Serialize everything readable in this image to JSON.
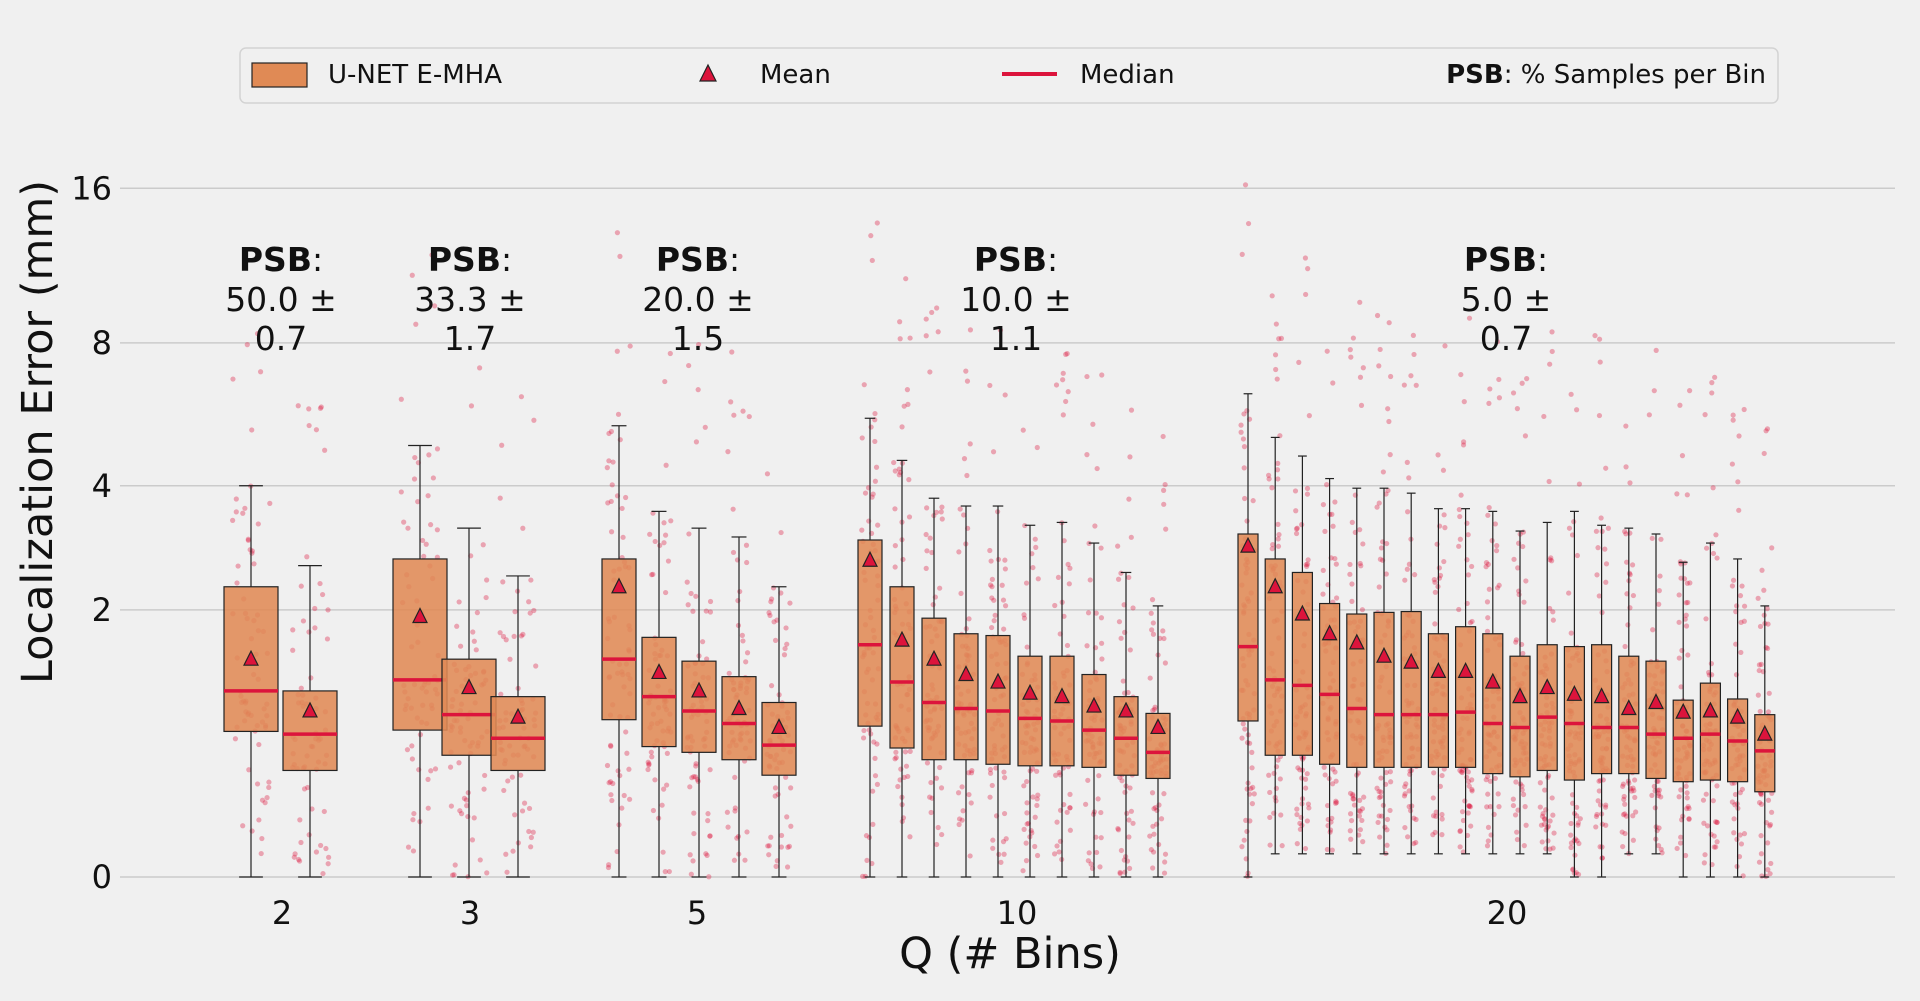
{
  "chart_data": {
    "type": "box",
    "xlabel": "Q (# Bins)",
    "ylabel": "Localization Error (mm)",
    "y_scale": "log2(1+y)",
    "ylim": [
      0,
      16
    ],
    "y_ticks": [
      0,
      2,
      4,
      8,
      16
    ],
    "grid": "horizontal",
    "legend": {
      "placement": "top",
      "items": [
        {
          "label": "U-NET E-MHA"
        },
        {
          "label": "Mean"
        },
        {
          "label": "Median"
        },
        {
          "label_bold": "PSB",
          "label_rest": ": % Samples per Bin"
        }
      ]
    },
    "colors": {
      "box": "#e08a55",
      "median": "#dc143c",
      "mean": "#dc143c",
      "points": "#dc143c",
      "grid": "#cbcbcb",
      "background": "#f0f0f0"
    },
    "groups": [
      {
        "q": "2",
        "psb": {
          "bold": "PSB",
          "colon": ":",
          "line2": "50.0 ±",
          "line3": "0.7"
        },
        "boxes": [
          {
            "q1": 0.82,
            "median": 1.15,
            "q3": 2.3,
            "mean": 1.45,
            "lower": 0,
            "upper": 4.0
          },
          {
            "q1": 0.55,
            "median": 0.8,
            "q3": 1.15,
            "mean": 0.98,
            "lower": 0,
            "upper": 2.6
          }
        ]
      },
      {
        "q": "3",
        "psb": {
          "bold": "PSB",
          "colon": ":",
          "line2": "33.3 ±",
          "line3": "1.7"
        },
        "boxes": [
          {
            "q1": 0.83,
            "median": 1.25,
            "q3": 2.7,
            "mean": 1.92,
            "lower": 0,
            "upper": 4.9
          },
          {
            "q1": 0.65,
            "median": 0.95,
            "q3": 1.45,
            "mean": 1.18,
            "lower": 0,
            "upper": 3.2
          },
          {
            "q1": 0.55,
            "median": 0.77,
            "q3": 1.1,
            "mean": 0.93,
            "lower": 0,
            "upper": 2.45
          }
        ]
      },
      {
        "q": "5",
        "psb": {
          "bold": "PSB",
          "colon": ":",
          "line2": "20.0 ±",
          "line3": "1.5"
        },
        "boxes": [
          {
            "q1": 0.91,
            "median": 1.45,
            "q3": 2.7,
            "mean": 2.3,
            "lower": 0,
            "upper": 5.4
          },
          {
            "q1": 0.71,
            "median": 1.1,
            "q3": 1.68,
            "mean": 1.32,
            "lower": 0,
            "upper": 3.5
          },
          {
            "q1": 0.67,
            "median": 0.98,
            "q3": 1.43,
            "mean": 1.15,
            "lower": 0,
            "upper": 3.2
          },
          {
            "q1": 0.62,
            "median": 0.88,
            "q3": 1.28,
            "mean": 1.0,
            "lower": 0,
            "upper": 3.05
          },
          {
            "q1": 0.52,
            "median": 0.72,
            "q3": 1.05,
            "mean": 0.85,
            "lower": 0,
            "upper": 2.3
          }
        ]
      },
      {
        "q": "10",
        "psb": {
          "bold": "PSB",
          "colon": ":",
          "line2": "10.0 ±",
          "line3": "1.1"
        },
        "boxes": [
          {
            "q1": 0.86,
            "median": 1.6,
            "q3": 3.0,
            "mean": 2.68,
            "lower": 0,
            "upper": 5.6
          },
          {
            "q1": 0.7,
            "median": 1.23,
            "q3": 2.3,
            "mean": 1.65,
            "lower": 0,
            "upper": 4.55
          },
          {
            "q1": 0.62,
            "median": 1.05,
            "q3": 1.9,
            "mean": 1.45,
            "lower": 0,
            "upper": 3.75
          },
          {
            "q1": 0.62,
            "median": 1.0,
            "q3": 1.72,
            "mean": 1.3,
            "lower": 0,
            "upper": 3.6
          },
          {
            "q1": 0.59,
            "median": 0.98,
            "q3": 1.7,
            "mean": 1.23,
            "lower": 0,
            "upper": 3.6
          },
          {
            "q1": 0.58,
            "median": 0.92,
            "q3": 1.48,
            "mean": 1.13,
            "lower": 0,
            "upper": 3.25
          },
          {
            "q1": 0.58,
            "median": 0.9,
            "q3": 1.48,
            "mean": 1.1,
            "lower": 0,
            "upper": 3.3
          },
          {
            "q1": 0.57,
            "median": 0.83,
            "q3": 1.3,
            "mean": 1.02,
            "lower": 0,
            "upper": 2.95
          },
          {
            "q1": 0.52,
            "median": 0.77,
            "q3": 1.1,
            "mean": 0.98,
            "lower": 0,
            "upper": 2.5
          },
          {
            "q1": 0.5,
            "median": 0.67,
            "q3": 0.96,
            "mean": 0.85,
            "lower": 0,
            "upper": 2.05
          }
        ]
      },
      {
        "q": "20",
        "psb": {
          "bold": "PSB",
          "colon": ":",
          "line2": "5.0 ±",
          "line3": "0.7"
        },
        "boxes": [
          {
            "q1": 0.9,
            "median": 1.58,
            "q3": 3.1,
            "mean": 2.9,
            "lower": 0,
            "upper": 6.3
          },
          {
            "q1": 0.65,
            "median": 1.25,
            "q3": 2.7,
            "mean": 2.3,
            "lower": 0.1,
            "upper": 5.1
          },
          {
            "q1": 0.65,
            "median": 1.2,
            "q3": 2.5,
            "mean": 1.95,
            "lower": 0.1,
            "upper": 4.65
          },
          {
            "q1": 0.59,
            "median": 1.12,
            "q3": 2.08,
            "mean": 1.72,
            "lower": 0.1,
            "upper": 4.15
          },
          {
            "q1": 0.57,
            "median": 1.0,
            "q3": 1.95,
            "mean": 1.62,
            "lower": 0.1,
            "upper": 3.95
          },
          {
            "q1": 0.57,
            "median": 0.95,
            "q3": 1.97,
            "mean": 1.48,
            "lower": 0.1,
            "upper": 3.95
          },
          {
            "q1": 0.57,
            "median": 0.95,
            "q3": 1.98,
            "mean": 1.42,
            "lower": 0.1,
            "upper": 3.85
          },
          {
            "q1": 0.57,
            "median": 0.95,
            "q3": 1.72,
            "mean": 1.33,
            "lower": 0.1,
            "upper": 3.55
          },
          {
            "q1": 0.57,
            "median": 0.97,
            "q3": 1.8,
            "mean": 1.33,
            "lower": 0.1,
            "upper": 3.55
          },
          {
            "q1": 0.53,
            "median": 0.88,
            "q3": 1.72,
            "mean": 1.23,
            "lower": 0.1,
            "upper": 3.5
          },
          {
            "q1": 0.51,
            "median": 0.85,
            "q3": 1.48,
            "mean": 1.1,
            "lower": 0.1,
            "upper": 3.15
          },
          {
            "q1": 0.55,
            "median": 0.93,
            "q3": 1.6,
            "mean": 1.18,
            "lower": 0.1,
            "upper": 3.3
          },
          {
            "q1": 0.49,
            "median": 0.88,
            "q3": 1.58,
            "mean": 1.12,
            "lower": 0,
            "upper": 3.5
          },
          {
            "q1": 0.53,
            "median": 0.85,
            "q3": 1.6,
            "mean": 1.1,
            "lower": 0,
            "upper": 3.25
          },
          {
            "q1": 0.53,
            "median": 0.85,
            "q3": 1.48,
            "mean": 1.0,
            "lower": 0.1,
            "upper": 3.2
          },
          {
            "q1": 0.5,
            "median": 0.8,
            "q3": 1.43,
            "mean": 1.05,
            "lower": 0.1,
            "upper": 3.1
          },
          {
            "q1": 0.48,
            "median": 0.77,
            "q3": 1.07,
            "mean": 0.97,
            "lower": 0,
            "upper": 2.65
          },
          {
            "q1": 0.49,
            "median": 0.8,
            "q3": 1.22,
            "mean": 0.98,
            "lower": 0,
            "upper": 2.95
          },
          {
            "q1": 0.48,
            "median": 0.75,
            "q3": 1.08,
            "mean": 0.93,
            "lower": 0,
            "upper": 2.7
          },
          {
            "q1": 0.42,
            "median": 0.68,
            "q3": 0.95,
            "mean": 0.8,
            "lower": 0,
            "upper": 2.05
          }
        ]
      }
    ]
  }
}
